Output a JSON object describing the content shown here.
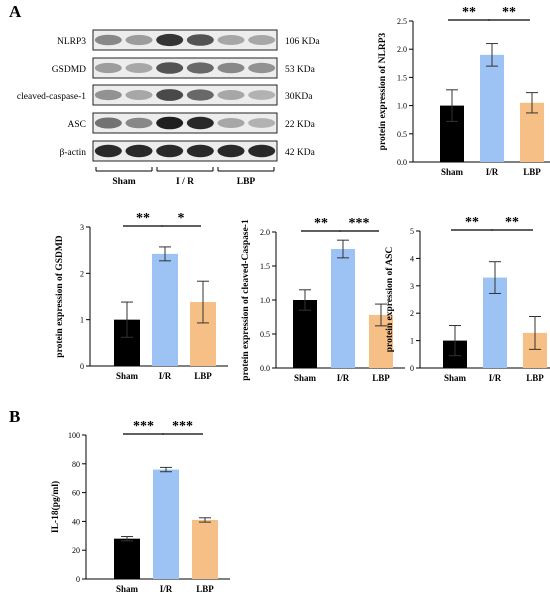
{
  "panel_labels": {
    "a": "A",
    "b": "B"
  },
  "colors": {
    "sham": "#000000",
    "ir": "#9cc3f4",
    "lbp": "#f6bf85"
  },
  "blot": {
    "rows": [
      {
        "protein": "NLRP3",
        "size": "106 KDa"
      },
      {
        "protein": "GSDMD",
        "size": "53 KDa"
      },
      {
        "protein": "cleaved-caspase-1",
        "size": "30KDa"
      },
      {
        "protein": "ASC",
        "size": "22 KDa"
      },
      {
        "protein": "β-actin",
        "size": "42 KDa"
      }
    ],
    "groups": [
      "Sham",
      "I / R",
      "LBP"
    ]
  },
  "chart_data": [
    {
      "type": "bar",
      "categories": [
        "Sham",
        "I/R",
        "LBP"
      ],
      "values": [
        1.0,
        1.9,
        1.05
      ],
      "errors": [
        0.28,
        0.2,
        0.18
      ],
      "ylabel": "protein expression of NLRP3",
      "ylim": [
        0,
        2.5
      ],
      "yticks": [
        "0.0",
        "0.5",
        "1.0",
        "1.5",
        "2.0",
        "2.5"
      ],
      "significance": [
        {
          "from": 0,
          "to": 1,
          "label": "**"
        },
        {
          "from": 1,
          "to": 2,
          "label": "**"
        }
      ]
    },
    {
      "type": "bar",
      "categories": [
        "Sham",
        "I/R",
        "LBP"
      ],
      "values": [
        1.0,
        2.42,
        1.38
      ],
      "errors": [
        0.38,
        0.15,
        0.45
      ],
      "ylabel": "protein expression of GSDMD",
      "ylim": [
        0,
        3
      ],
      "yticks": [
        "0",
        "1",
        "2",
        "3"
      ],
      "significance": [
        {
          "from": 0,
          "to": 1,
          "label": "**"
        },
        {
          "from": 1,
          "to": 2,
          "label": "*"
        }
      ]
    },
    {
      "type": "bar",
      "categories": [
        "Sham",
        "I/R",
        "LBP"
      ],
      "values": [
        1.0,
        1.75,
        0.78
      ],
      "errors": [
        0.15,
        0.13,
        0.16
      ],
      "ylabel": "protein expression of cleaved-Caspase-1",
      "ylim": [
        0,
        2.0
      ],
      "yticks": [
        "0.0",
        "0.5",
        "1.0",
        "1.5",
        "2.0"
      ],
      "significance": [
        {
          "from": 0,
          "to": 1,
          "label": "**"
        },
        {
          "from": 1,
          "to": 2,
          "label": "***"
        }
      ]
    },
    {
      "type": "bar",
      "categories": [
        "Sham",
        "I/R",
        "LBP"
      ],
      "values": [
        1.0,
        3.3,
        1.28
      ],
      "errors": [
        0.55,
        0.58,
        0.6
      ],
      "ylabel": "protein expression of ASC",
      "ylim": [
        0,
        5
      ],
      "yticks": [
        "0",
        "1",
        "2",
        "3",
        "4",
        "5"
      ],
      "significance": [
        {
          "from": 0,
          "to": 1,
          "label": "**"
        },
        {
          "from": 1,
          "to": 2,
          "label": "**"
        }
      ]
    },
    {
      "type": "bar",
      "categories": [
        "Sham",
        "I/R",
        "LBP"
      ],
      "values": [
        28,
        76,
        41
      ],
      "errors": [
        1.5,
        1.5,
        1.5
      ],
      "ylabel": "IL-18(pg/ml)",
      "ylim": [
        0,
        100
      ],
      "yticks": [
        "0",
        "20",
        "40",
        "60",
        "80",
        "100"
      ],
      "significance": [
        {
          "from": 0,
          "to": 1,
          "label": "***"
        },
        {
          "from": 1,
          "to": 2,
          "label": "***"
        }
      ]
    }
  ]
}
